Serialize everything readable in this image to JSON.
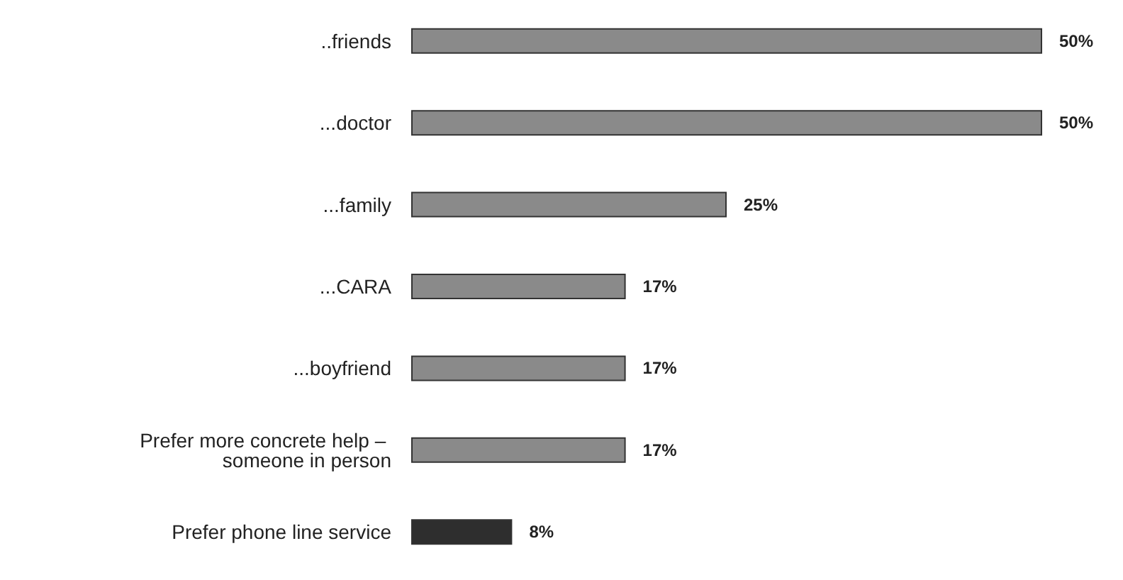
{
  "chart_data": {
    "type": "bar",
    "orientation": "horizontal",
    "categories": [
      "..friends",
      "...doctor",
      "...family",
      "...CARA",
      "...boyfriend",
      "Prefer more concrete help – someone in person",
      "Prefer phone line service"
    ],
    "values": [
      50,
      50,
      25,
      17,
      17,
      17,
      8
    ],
    "colors": [
      "#8a8a8a",
      "#8a8a8a",
      "#8a8a8a",
      "#8a8a8a",
      "#8a8a8a",
      "#8a8a8a",
      "#2e2e2e"
    ],
    "value_labels": [
      "50%",
      "50%",
      "25%",
      "17%",
      "17%",
      "17%",
      "8%"
    ]
  }
}
